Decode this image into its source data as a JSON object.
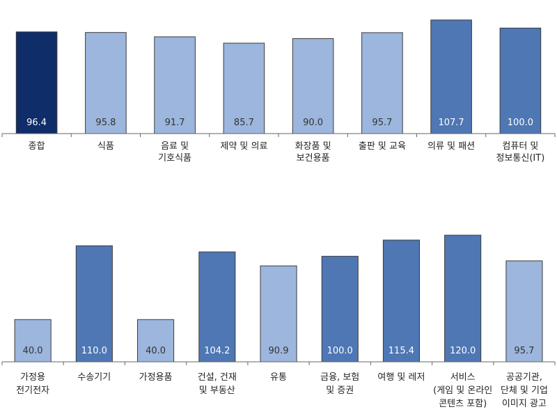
{
  "colors": {
    "dark": "#0f2d69",
    "medium": "#4e77b3",
    "light": "#9cb6dd",
    "outline": "#3b3b3b",
    "axis": "#666666",
    "value_text_on_dark": "#ffffff",
    "value_text_on_light": "#333333"
  },
  "chart_data": [
    {
      "type": "bar",
      "title": "",
      "xlabel": "",
      "ylabel": "",
      "ylim": [
        0,
        120
      ],
      "categories": [
        [
          "종합"
        ],
        [
          "식품"
        ],
        [
          "음료 및",
          "기호식품"
        ],
        [
          "제약 및 의료"
        ],
        [
          "화장품 및",
          "보건용품"
        ],
        [
          "출판 및 교육"
        ],
        [
          "의류 및 패션"
        ],
        [
          "컴퓨터 및",
          "정보통신(IT)"
        ]
      ],
      "values": [
        96.4,
        95.8,
        91.7,
        85.7,
        90.0,
        95.7,
        107.7,
        100.0
      ],
      "value_labels": [
        "96.4",
        "95.8",
        "91.7",
        "85.7",
        "90.0",
        "95.7",
        "107.7",
        "100.0"
      ],
      "bar_styles": [
        "dark",
        "light",
        "light",
        "light",
        "light",
        "light",
        "medium",
        "medium"
      ],
      "grid": false,
      "legend": "none"
    },
    {
      "type": "bar",
      "title": "",
      "xlabel": "",
      "ylabel": "",
      "ylim": [
        0,
        120
      ],
      "categories": [
        [
          "가정용",
          "전기전자"
        ],
        [
          "수송기기"
        ],
        [
          "가정용품"
        ],
        [
          "건설, 건재",
          "및 부동산"
        ],
        [
          "유통"
        ],
        [
          "금융, 보험",
          "및 증권"
        ],
        [
          "여행 및 레저"
        ],
        [
          "서비스",
          "(게임 및 온라인",
          "콘텐츠 포함)"
        ],
        [
          "공공기관,",
          "단체 및 기업",
          "이미지 광고"
        ]
      ],
      "values": [
        40.0,
        110.0,
        40.0,
        104.2,
        90.9,
        100.0,
        115.4,
        120.0,
        95.7
      ],
      "value_labels": [
        "40.0",
        "110.0",
        "40.0",
        "104.2",
        "90.9",
        "100.0",
        "115.4",
        "120.0",
        "95.7"
      ],
      "bar_styles": [
        "light",
        "medium",
        "light",
        "medium",
        "light",
        "medium",
        "medium",
        "medium",
        "light"
      ],
      "grid": false,
      "legend": "none"
    }
  ]
}
